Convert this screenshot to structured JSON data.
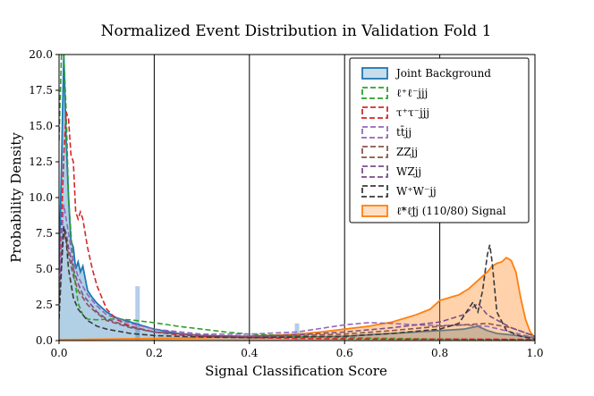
{
  "chart_data": {
    "type": "line",
    "title": "Normalized Event Distribution in Validation Fold 1",
    "xlabel": "Signal Classification Score",
    "ylabel": "Probability Density",
    "xlim": [
      0.0,
      1.0
    ],
    "ylim": [
      0.0,
      20.0
    ],
    "x_ticks": [
      "0.0",
      "0.2",
      "0.4",
      "0.6",
      "0.8",
      "1.0"
    ],
    "y_ticks": [
      "0.0",
      "2.5",
      "5.0",
      "7.5",
      "10.0",
      "12.5",
      "15.0",
      "17.5",
      "20.0"
    ],
    "vertical_lines": [
      0.2,
      0.4,
      0.6,
      0.8
    ],
    "legend_position": "top-right",
    "series": [
      {
        "name": "Joint Background",
        "style": "filled-histogram",
        "color": "#1f77b4",
        "x": [
          0.0,
          0.005,
          0.01,
          0.015,
          0.02,
          0.025,
          0.03,
          0.035,
          0.04,
          0.045,
          0.05,
          0.06,
          0.07,
          0.08,
          0.1,
          0.12,
          0.15,
          0.2,
          0.25,
          0.3,
          0.4,
          0.5,
          0.6,
          0.7,
          0.75,
          0.8,
          0.85,
          0.88,
          0.9,
          0.92,
          0.95,
          1.0
        ],
        "y": [
          5.0,
          12.0,
          20.0,
          14.0,
          10.0,
          7.0,
          6.5,
          5.0,
          5.5,
          4.8,
          5.2,
          3.5,
          3.0,
          2.6,
          2.0,
          1.6,
          1.3,
          0.8,
          0.5,
          0.35,
          0.25,
          0.25,
          0.3,
          0.5,
          0.6,
          0.7,
          0.8,
          1.0,
          0.7,
          0.5,
          0.4,
          0.2
        ]
      },
      {
        "name": "ℓ⁺ℓ⁻jjj",
        "style": "dashed",
        "color": "#2ca02c",
        "x": [
          0.0,
          0.005,
          0.01,
          0.015,
          0.02,
          0.03,
          0.04,
          0.05,
          0.06,
          0.08,
          0.1,
          0.12,
          0.15,
          0.2,
          0.25,
          0.3,
          0.35,
          0.4,
          0.5,
          0.6,
          0.7,
          0.8,
          0.9,
          1.0
        ],
        "y": [
          14.0,
          20.0,
          20.0,
          16.0,
          10.0,
          5.0,
          2.6,
          1.8,
          1.5,
          1.45,
          1.5,
          1.5,
          1.45,
          1.25,
          1.0,
          0.8,
          0.6,
          0.45,
          0.3,
          0.2,
          0.15,
          0.1,
          0.08,
          0.05
        ]
      },
      {
        "name": "τ⁺τ⁻jjj",
        "style": "dashed",
        "color": "#d62728",
        "x": [
          0.0,
          0.005,
          0.01,
          0.015,
          0.02,
          0.025,
          0.03,
          0.035,
          0.04,
          0.045,
          0.05,
          0.06,
          0.07,
          0.08,
          0.1,
          0.12,
          0.15,
          0.2,
          0.25,
          0.3,
          0.4,
          0.5,
          0.6,
          0.7,
          0.8,
          0.9,
          1.0
        ],
        "y": [
          3.0,
          8.0,
          13.0,
          16.0,
          15.5,
          13.0,
          12.5,
          9.0,
          8.5,
          9.0,
          8.5,
          6.5,
          5.0,
          3.8,
          2.2,
          1.5,
          1.0,
          0.6,
          0.4,
          0.3,
          0.2,
          0.15,
          0.12,
          0.1,
          0.1,
          0.1,
          0.08
        ]
      },
      {
        "name": "tt̄jj",
        "style": "dashed",
        "color": "#9467bd",
        "x": [
          0.0,
          0.005,
          0.01,
          0.015,
          0.02,
          0.03,
          0.04,
          0.05,
          0.06,
          0.08,
          0.1,
          0.15,
          0.2,
          0.3,
          0.4,
          0.5,
          0.55,
          0.6,
          0.65,
          0.7,
          0.75,
          0.8,
          0.85,
          0.9,
          0.95,
          1.0
        ],
        "y": [
          3.0,
          7.0,
          9.5,
          8.5,
          7.5,
          5.5,
          4.5,
          3.8,
          3.2,
          2.4,
          1.8,
          1.2,
          0.8,
          0.45,
          0.45,
          0.6,
          0.85,
          1.1,
          1.25,
          1.2,
          1.1,
          1.05,
          1.1,
          1.0,
          0.6,
          0.2
        ]
      },
      {
        "name": "ZZjj",
        "style": "dashed",
        "color": "#8c564b",
        "x": [
          0.0,
          0.005,
          0.01,
          0.015,
          0.02,
          0.03,
          0.04,
          0.05,
          0.06,
          0.08,
          0.1,
          0.15,
          0.2,
          0.3,
          0.4,
          0.5,
          0.6,
          0.7,
          0.75,
          0.8,
          0.85,
          0.9,
          0.95,
          1.0
        ],
        "y": [
          2.0,
          5.5,
          7.5,
          7.0,
          6.0,
          4.5,
          3.5,
          3.0,
          2.5,
          1.9,
          1.4,
          0.9,
          0.6,
          0.35,
          0.3,
          0.35,
          0.45,
          0.7,
          0.85,
          1.0,
          1.1,
          1.2,
          0.9,
          0.3
        ]
      },
      {
        "name": "WZjj",
        "style": "dashed",
        "color": "#7b4f8c",
        "x": [
          0.0,
          0.005,
          0.01,
          0.015,
          0.02,
          0.03,
          0.04,
          0.05,
          0.06,
          0.08,
          0.1,
          0.15,
          0.2,
          0.3,
          0.4,
          0.5,
          0.6,
          0.7,
          0.75,
          0.8,
          0.85,
          0.88,
          0.9,
          0.95,
          1.0
        ],
        "y": [
          2.0,
          6.0,
          8.0,
          7.5,
          6.5,
          5.0,
          4.0,
          3.2,
          2.8,
          2.0,
          1.5,
          0.95,
          0.6,
          0.35,
          0.3,
          0.4,
          0.6,
          0.9,
          1.1,
          1.3,
          1.8,
          2.6,
          1.8,
          0.9,
          0.3
        ]
      },
      {
        "name": "W⁺W⁻jj",
        "style": "dashed",
        "color": "#3a3a3a",
        "x": [
          0.0,
          0.005,
          0.01,
          0.015,
          0.02,
          0.03,
          0.04,
          0.06,
          0.08,
          0.1,
          0.15,
          0.2,
          0.3,
          0.4,
          0.5,
          0.6,
          0.7,
          0.8,
          0.84,
          0.86,
          0.87,
          0.88,
          0.89,
          0.9,
          0.905,
          0.91,
          0.92,
          0.94,
          0.97,
          1.0
        ],
        "y": [
          1.5,
          5.0,
          8.0,
          7.0,
          5.0,
          3.0,
          2.2,
          1.4,
          1.0,
          0.8,
          0.5,
          0.35,
          0.25,
          0.2,
          0.25,
          0.3,
          0.5,
          0.8,
          1.2,
          2.2,
          2.7,
          2.0,
          3.5,
          6.0,
          6.7,
          5.5,
          2.0,
          0.7,
          0.3,
          0.1
        ]
      },
      {
        "name": "ℓ̃*ℓ̃jj (110/80) Signal",
        "style": "filled-solid",
        "color": "#ff7f0e",
        "x": [
          0.0,
          0.1,
          0.2,
          0.3,
          0.4,
          0.5,
          0.55,
          0.6,
          0.65,
          0.7,
          0.75,
          0.78,
          0.8,
          0.82,
          0.84,
          0.86,
          0.88,
          0.9,
          0.91,
          0.92,
          0.93,
          0.94,
          0.95,
          0.96,
          0.97,
          0.98,
          0.99,
          1.0
        ],
        "y": [
          0.05,
          0.1,
          0.15,
          0.2,
          0.3,
          0.45,
          0.6,
          0.8,
          1.0,
          1.3,
          1.8,
          2.2,
          2.8,
          3.0,
          3.2,
          3.6,
          4.2,
          4.8,
          5.2,
          5.4,
          5.5,
          5.8,
          5.6,
          4.8,
          3.0,
          1.5,
          0.6,
          0.2
        ]
      }
    ],
    "histogram_bars": {
      "name": "Joint Background",
      "color": "#aec7e8",
      "x": [
        0.165,
        0.5
      ],
      "y": [
        3.8,
        1.2
      ]
    }
  }
}
